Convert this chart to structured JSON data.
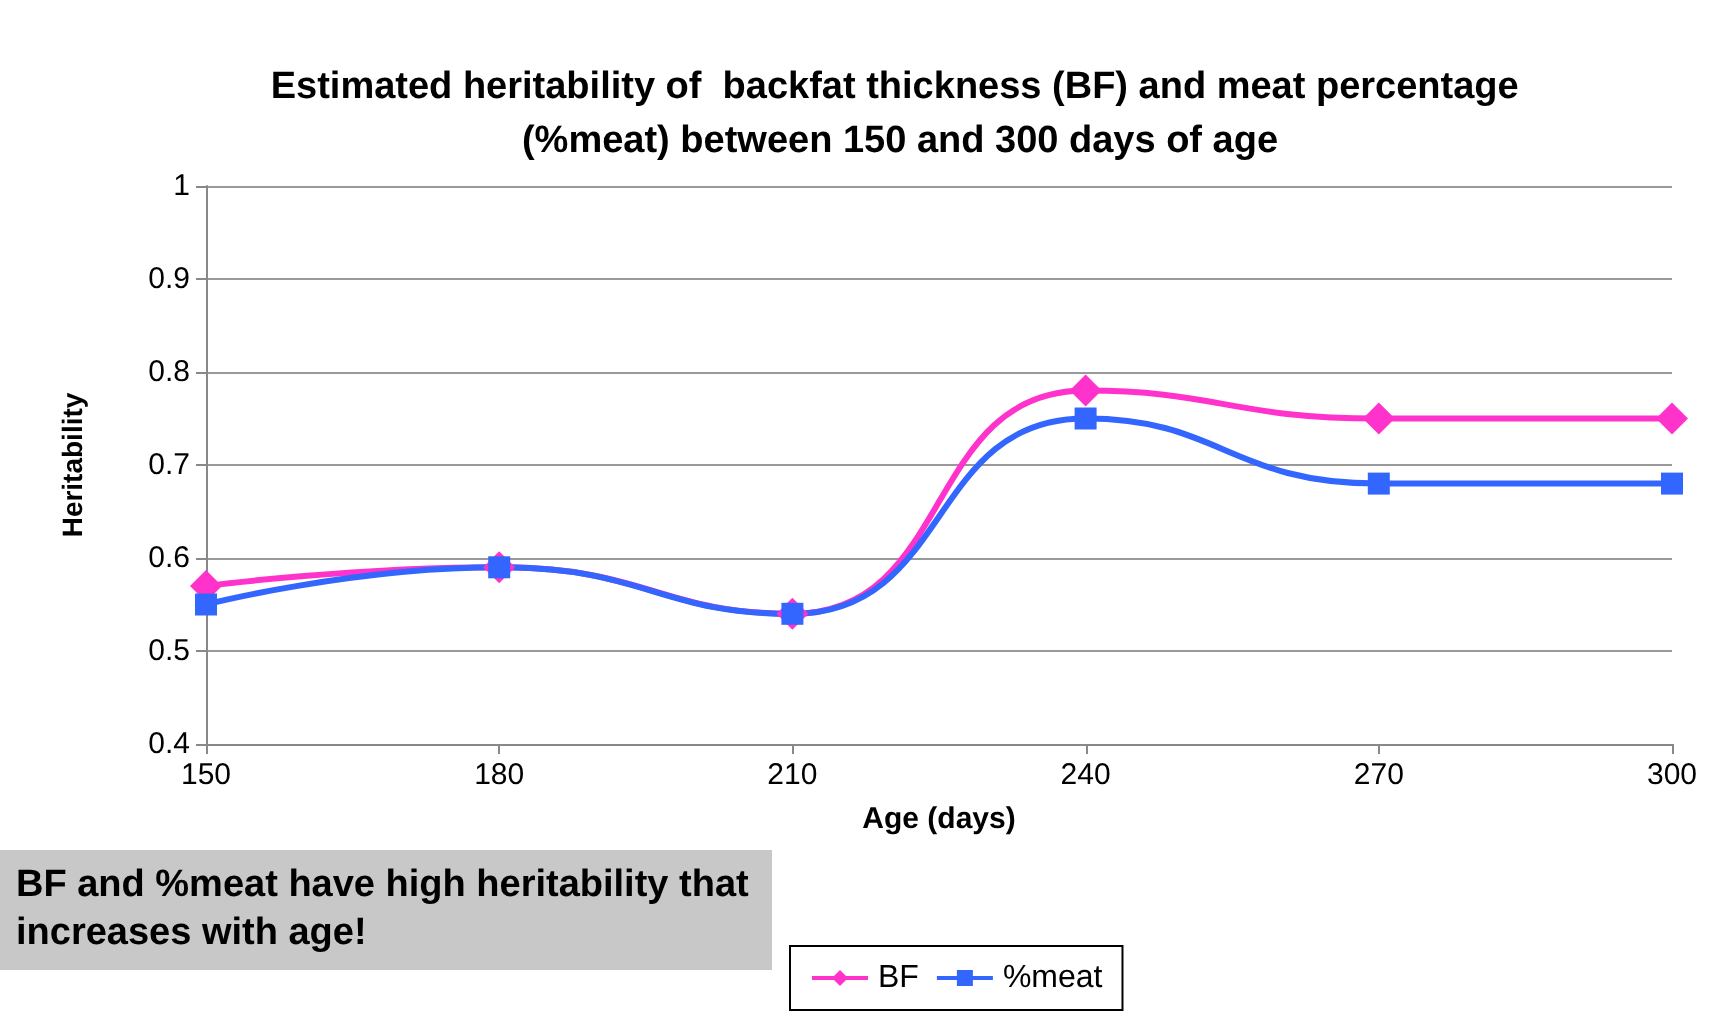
{
  "chart_data": {
    "type": "line",
    "title": "Estimated heritability of  backfat thickness (BF) and meat percentage (%meat) between 150 and 300 days of age",
    "xlabel": "Age (days)",
    "ylabel": "Heritability",
    "x": [
      150,
      180,
      210,
      240,
      270,
      300
    ],
    "series": [
      {
        "name": "BF",
        "color": "#ff33cc",
        "marker": "diamond",
        "values": [
          0.57,
          0.59,
          0.54,
          0.78,
          0.75,
          0.75
        ]
      },
      {
        "name": "%meat",
        "color": "#3366ff",
        "marker": "square",
        "values": [
          0.55,
          0.59,
          0.54,
          0.75,
          0.68,
          0.68
        ]
      }
    ],
    "xlim": [
      150,
      300
    ],
    "xticks": [
      150,
      180,
      210,
      240,
      270,
      300
    ],
    "ylim": [
      0.4,
      1
    ],
    "yticks": [
      0.4,
      0.5,
      0.6,
      0.7,
      0.8,
      0.9,
      1
    ],
    "grid": "y",
    "legend": "bottom",
    "line_style": "solid",
    "annotations": [
      "BF and %meat have high heritability that increases with age!"
    ]
  }
}
